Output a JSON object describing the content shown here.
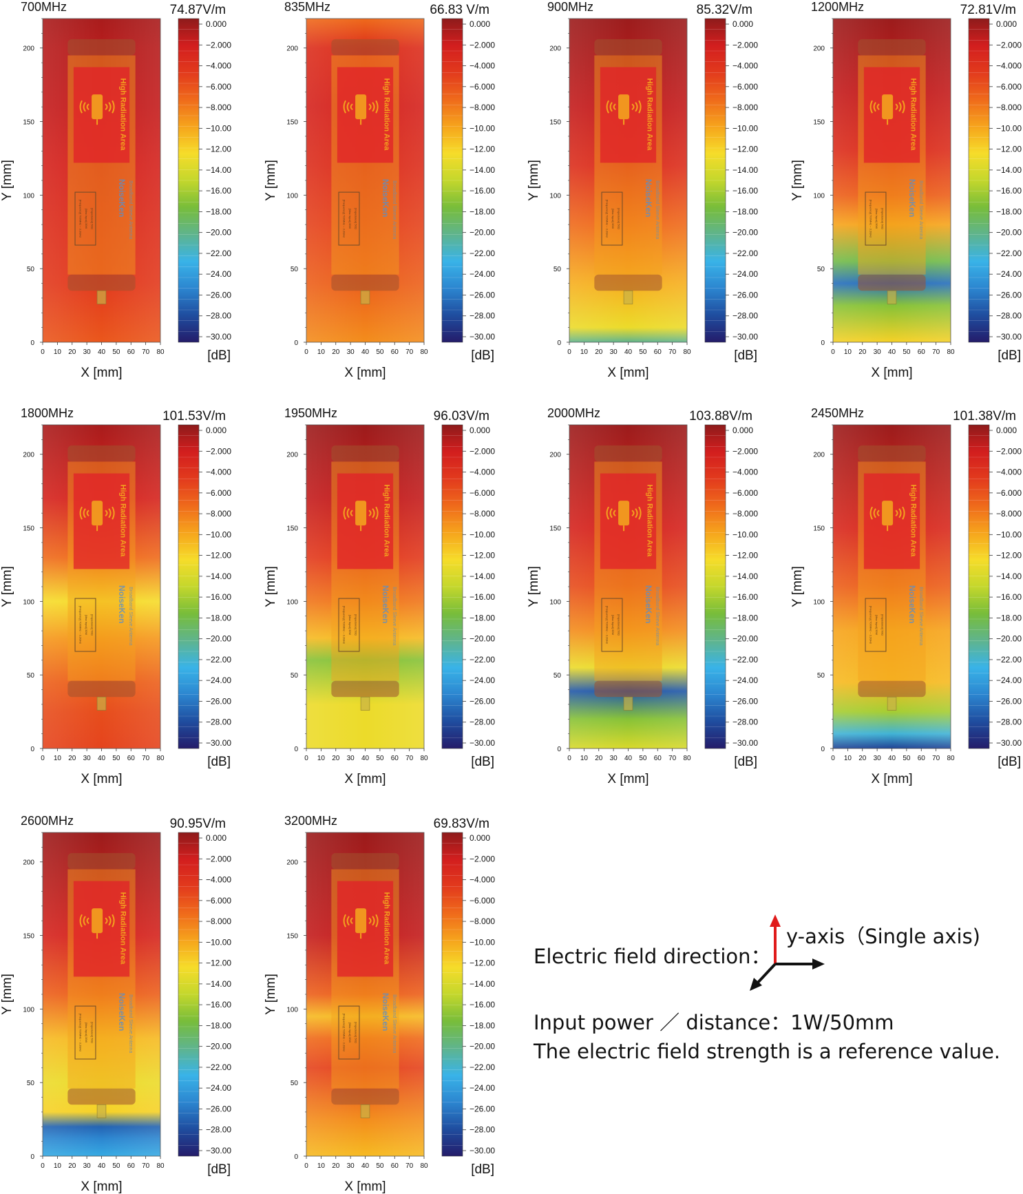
{
  "colormap_stops": [
    "#8e1b1b",
    "#d21e1e",
    "#e23a1d",
    "#ef6a1b",
    "#f6a41c",
    "#f6dc2a",
    "#c4d72c",
    "#78bd3a",
    "#5fb48d",
    "#39b3e8",
    "#2c86d0",
    "#1f4d9f",
    "#241c6a"
  ],
  "antenna_overlay": {
    "label_text": "High Radiation Area",
    "brand": "NoiseKen",
    "product": "Broadband Sleeve Antenna",
    "spec_lines": [
      "[Frequency] 700MHz ~ 3.2GHz",
      "[Max Input]         30W",
      "[Impedance]         50Ω"
    ],
    "colors": {
      "body": "#f3a21f",
      "label": "#e0202a",
      "cap": "#a0522d"
    }
  },
  "notes": {
    "direction_label": "Electric field direction：",
    "axis_label": "y-axis（Single axis)",
    "power_line": "Input power ／ distance：1W/50mm",
    "reference_line": "The electric field strength is a reference value."
  },
  "chart_data": [
    {
      "type": "heatmap",
      "title": "700MHz",
      "max_field": "74.87V/m",
      "xlabel": "X [mm]",
      "ylabel": "Y [mm]",
      "xlim": [
        0,
        80
      ],
      "ylim": [
        0,
        220
      ],
      "x_ticks": [
        0,
        10,
        20,
        30,
        40,
        50,
        60,
        70,
        80
      ],
      "y_ticks": [
        0,
        50,
        100,
        150,
        200
      ],
      "colorbar_ticks": [
        "0.000",
        "−2.000",
        "−4.000",
        "−6.000",
        "−8.000",
        "−10.00",
        "−12.00",
        "−14.00",
        "−16.00",
        "−18.00",
        "−20.00",
        "−22.00",
        "−24.00",
        "−26.00",
        "−28.00",
        "−30.00"
      ],
      "colorbar_unit": "[dB]",
      "colorbar_range": [
        -30,
        0
      ],
      "y_grid": [
        0,
        40,
        80,
        120,
        160,
        200,
        220
      ],
      "db_profile": [
        -6.5,
        -5.0,
        -4.0,
        -3.0,
        -2.0,
        -1.5,
        -1.0
      ],
      "center_anomaly": null
    },
    {
      "type": "heatmap",
      "title": "835MHz",
      "max_field": "66.83 V/m",
      "xlabel": "X [mm]",
      "ylabel": "Y [mm]",
      "xlim": [
        0,
        80
      ],
      "ylim": [
        0,
        220
      ],
      "x_ticks": [
        0,
        10,
        20,
        30,
        40,
        50,
        60,
        70,
        80
      ],
      "y_ticks": [
        0,
        50,
        100,
        150,
        200
      ],
      "colorbar_ticks": [
        "0.000",
        "−2.000",
        "−4.000",
        "−6.000",
        "−8.000",
        "−10.00",
        "−12.00",
        "−14.00",
        "−16.00",
        "−18.00",
        "−20.00",
        "−22.00",
        "−24.00",
        "−26.00",
        "−28.00",
        "−30.00"
      ],
      "colorbar_unit": "[dB]",
      "colorbar_range": [
        -30,
        0
      ],
      "y_grid": [
        0,
        40,
        80,
        120,
        160,
        200,
        220
      ],
      "db_profile": [
        -9.0,
        -7.0,
        -5.5,
        -4.0,
        -3.0,
        -4.0,
        -7.5
      ],
      "center_anomaly": null
    },
    {
      "type": "heatmap",
      "title": "900MHz",
      "max_field": "85.32V/m",
      "xlabel": "X [mm]",
      "ylabel": "Y [mm]",
      "xlim": [
        0,
        80
      ],
      "ylim": [
        0,
        220
      ],
      "x_ticks": [
        0,
        10,
        20,
        30,
        40,
        50,
        60,
        70,
        80
      ],
      "y_ticks": [
        0,
        50,
        100,
        150,
        200
      ],
      "colorbar_ticks": [
        "0.000",
        "−2.000",
        "−4.000",
        "−6.000",
        "−8.000",
        "−10.00",
        "−12.00",
        "−14.00",
        "−16.00",
        "−18.00",
        "−20.00",
        "−22.00",
        "−24.00",
        "−26.00",
        "−28.00",
        "−30.00"
      ],
      "colorbar_unit": "[dB]",
      "colorbar_range": [
        -30,
        0
      ],
      "y_grid": [
        0,
        10,
        40,
        80,
        120,
        160,
        200,
        220
      ],
      "db_profile": [
        -20.0,
        -13.0,
        -10.5,
        -7.5,
        -4.0,
        -2.0,
        -1.0,
        -0.5
      ],
      "center_anomaly": null
    },
    {
      "type": "heatmap",
      "title": "1200MHz",
      "max_field": "72.81V/m",
      "xlabel": "X [mm]",
      "ylabel": "Y [mm]",
      "xlim": [
        0,
        80
      ],
      "ylim": [
        0,
        220
      ],
      "x_ticks": [
        0,
        10,
        20,
        30,
        40,
        50,
        60,
        70,
        80
      ],
      "y_ticks": [
        0,
        50,
        100,
        150,
        200
      ],
      "colorbar_ticks": [
        "0.000",
        "−2.000",
        "−4.000",
        "−6.000",
        "−8.000",
        "−10.00",
        "−12.00",
        "−14.00",
        "−16.00",
        "−18.00",
        "−20.00",
        "−22.00",
        "−24.00",
        "−26.00",
        "−28.00",
        "−30.00"
      ],
      "colorbar_unit": "[dB]",
      "colorbar_range": [
        -30,
        0
      ],
      "y_grid": [
        0,
        25,
        40,
        55,
        80,
        100,
        130,
        170,
        220
      ],
      "db_profile": [
        -12.0,
        -17.0,
        -26.0,
        -18.0,
        -10.0,
        -7.0,
        -4.0,
        -2.0,
        -0.5
      ],
      "center_anomaly": null
    },
    {
      "type": "heatmap",
      "title": "1800MHz",
      "max_field": "101.53V/m",
      "xlabel": "X [mm]",
      "ylabel": "Y [mm]",
      "xlim": [
        0,
        80
      ],
      "ylim": [
        0,
        220
      ],
      "x_ticks": [
        0,
        10,
        20,
        30,
        40,
        50,
        60,
        70,
        80
      ],
      "y_ticks": [
        0,
        50,
        100,
        150,
        200
      ],
      "colorbar_ticks": [
        "0.000",
        "−2.000",
        "−4.000",
        "−6.000",
        "−8.000",
        "−10.00",
        "−12.00",
        "−14.00",
        "−16.00",
        "−18.00",
        "−20.00",
        "−22.00",
        "−24.00",
        "−26.00",
        "−28.00",
        "−30.00"
      ],
      "colorbar_unit": "[dB]",
      "colorbar_range": [
        -30,
        0
      ],
      "y_grid": [
        0,
        25,
        45,
        75,
        100,
        130,
        170,
        220
      ],
      "db_profile": [
        -5.5,
        -6.0,
        -7.0,
        -9.5,
        -12.5,
        -7.5,
        -3.0,
        -1.0
      ],
      "center_anomaly": null
    },
    {
      "type": "heatmap",
      "title": "1950MHz",
      "max_field": "96.03V/m",
      "xlabel": "X [mm]",
      "ylabel": "Y [mm]",
      "xlim": [
        0,
        80
      ],
      "ylim": [
        0,
        220
      ],
      "x_ticks": [
        0,
        10,
        20,
        30,
        40,
        50,
        60,
        70,
        80
      ],
      "y_ticks": [
        0,
        50,
        100,
        150,
        200
      ],
      "colorbar_ticks": [
        "0.000",
        "−2.000",
        "−4.000",
        "−6.000",
        "−8.000",
        "−10.00",
        "−12.00",
        "−14.00",
        "−16.00",
        "−18.00",
        "−20.00",
        "−22.00",
        "−24.00",
        "−26.00",
        "−28.00",
        "−30.00"
      ],
      "colorbar_unit": "[dB]",
      "colorbar_range": [
        -30,
        0
      ],
      "y_grid": [
        0,
        30,
        60,
        75,
        100,
        130,
        170,
        220
      ],
      "db_profile": [
        -13.0,
        -13.0,
        -17.0,
        -11.0,
        -8.0,
        -5.0,
        -2.0,
        -0.5
      ],
      "center_anomaly": null
    },
    {
      "type": "heatmap",
      "title": "2000MHz",
      "max_field": "103.88V/m",
      "xlabel": "X [mm]",
      "ylabel": "Y [mm]",
      "xlim": [
        0,
        80
      ],
      "ylim": [
        0,
        220
      ],
      "x_ticks": [
        0,
        10,
        20,
        30,
        40,
        50,
        60,
        70,
        80
      ],
      "y_ticks": [
        0,
        50,
        100,
        150,
        200
      ],
      "colorbar_ticks": [
        "0.000",
        "−2.000",
        "−4.000",
        "−6.000",
        "−8.000",
        "−10.00",
        "−12.00",
        "−14.00",
        "−16.00",
        "−18.00",
        "−20.00",
        "−22.00",
        "−24.00",
        "−26.00",
        "−28.00",
        "−30.00"
      ],
      "colorbar_unit": "[dB]",
      "colorbar_range": [
        -30,
        0
      ],
      "y_grid": [
        0,
        20,
        39,
        55,
        80,
        110,
        150,
        220
      ],
      "db_profile": [
        -14.0,
        -17.0,
        -27.0,
        -13.0,
        -9.0,
        -6.0,
        -3.0,
        -0.5
      ],
      "center_anomaly": null
    },
    {
      "type": "heatmap",
      "title": "2450MHz",
      "max_field": "101.38V/m",
      "xlabel": "X [mm]",
      "ylabel": "Y [mm]",
      "xlim": [
        0,
        80
      ],
      "ylim": [
        0,
        220
      ],
      "x_ticks": [
        0,
        10,
        20,
        30,
        40,
        50,
        60,
        70,
        80
      ],
      "y_ticks": [
        0,
        50,
        100,
        150,
        200
      ],
      "colorbar_ticks": [
        "0.000",
        "−2.000",
        "−4.000",
        "−6.000",
        "−8.000",
        "−10.00",
        "−12.00",
        "−14.00",
        "−16.00",
        "−18.00",
        "−20.00",
        "−22.00",
        "−24.00",
        "−26.00",
        "−28.00",
        "−30.00"
      ],
      "colorbar_unit": "[dB]",
      "colorbar_range": [
        -30,
        0
      ],
      "y_grid": [
        0,
        10,
        25,
        45,
        80,
        110,
        150,
        220
      ],
      "db_profile": [
        -28.0,
        -22.0,
        -16.0,
        -11.0,
        -10.0,
        -7.0,
        -3.5,
        -0.5
      ],
      "center_anomaly": null
    },
    {
      "type": "heatmap",
      "title": "2600MHz",
      "max_field": "90.95V/m",
      "xlabel": "X [mm]",
      "ylabel": "Y [mm]",
      "xlim": [
        0,
        80
      ],
      "ylim": [
        0,
        220
      ],
      "x_ticks": [
        0,
        10,
        20,
        30,
        40,
        50,
        60,
        70,
        80
      ],
      "y_ticks": [
        0,
        50,
        100,
        150,
        200
      ],
      "colorbar_ticks": [
        "0.000",
        "−2.000",
        "−4.000",
        "−6.000",
        "−8.000",
        "−10.00",
        "−12.00",
        "−14.00",
        "−16.00",
        "−18.00",
        "−20.00",
        "−22.00",
        "−24.00",
        "−26.00",
        "−28.00",
        "−30.00"
      ],
      "colorbar_unit": "[dB]",
      "colorbar_range": [
        -30,
        0
      ],
      "y_grid": [
        0,
        12,
        20,
        30,
        50,
        80,
        110,
        150,
        220
      ],
      "db_profile": [
        -23.0,
        -25.0,
        -26.5,
        -12.0,
        -13.0,
        -11.0,
        -7.0,
        -3.0,
        -0.5
      ],
      "center_anomaly": null
    },
    {
      "type": "heatmap",
      "title": "3200MHz",
      "max_field": "69.83V/m",
      "xlabel": "X [mm]",
      "ylabel": "Y [mm]",
      "xlim": [
        0,
        80
      ],
      "ylim": [
        0,
        220
      ],
      "x_ticks": [
        0,
        10,
        20,
        30,
        40,
        50,
        60,
        70,
        80
      ],
      "y_ticks": [
        0,
        50,
        100,
        150,
        200
      ],
      "colorbar_ticks": [
        "0.000",
        "−2.000",
        "−4.000",
        "−6.000",
        "−8.000",
        "−10.00",
        "−12.00",
        "−14.00",
        "−16.00",
        "−18.00",
        "−20.00",
        "−22.00",
        "−24.00",
        "−26.00",
        "−28.00",
        "−30.00"
      ],
      "colorbar_unit": "[dB]",
      "colorbar_range": [
        -30,
        0
      ],
      "y_grid": [
        0,
        25,
        60,
        80,
        95,
        110,
        150,
        220
      ],
      "db_profile": [
        -11.0,
        -9.0,
        -5.5,
        -7.5,
        -11.0,
        -7.0,
        -2.0,
        -0.5
      ],
      "center_anomaly": null
    }
  ]
}
